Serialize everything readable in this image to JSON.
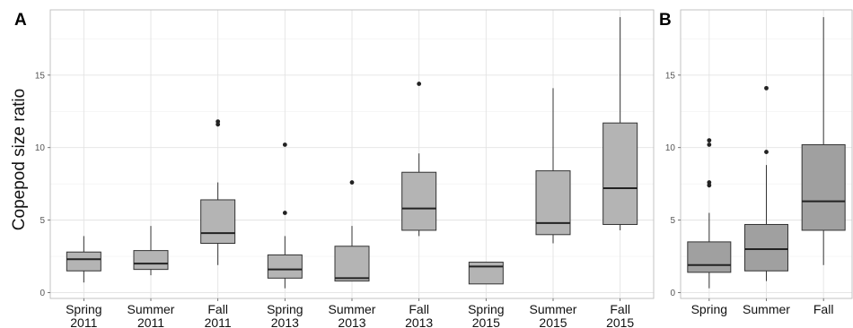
{
  "chart_data": [
    {
      "panel_label": "A",
      "type": "box",
      "ylabel": "Copepod size ratio",
      "ylim": [
        -0.4,
        19.5
      ],
      "yticks": [
        0,
        5,
        10,
        15
      ],
      "grid": true,
      "box_fill": "#b4b4b4",
      "categories": [
        {
          "line1": "Spring",
          "line2": "2011"
        },
        {
          "line1": "Summer",
          "line2": "2011"
        },
        {
          "line1": "Fall",
          "line2": "2011"
        },
        {
          "line1": "Spring",
          "line2": "2013"
        },
        {
          "line1": "Summer",
          "line2": "2013"
        },
        {
          "line1": "Fall",
          "line2": "2013"
        },
        {
          "line1": "Spring",
          "line2": "2015"
        },
        {
          "line1": "Summer",
          "line2": "2015"
        },
        {
          "line1": "Fall",
          "line2": "2015"
        }
      ],
      "boxes": [
        {
          "min": 0.7,
          "q1": 1.5,
          "median": 2.3,
          "q3": 2.8,
          "max": 3.9,
          "outliers": []
        },
        {
          "min": 1.2,
          "q1": 1.6,
          "median": 2.0,
          "q3": 2.9,
          "max": 4.6,
          "outliers": []
        },
        {
          "min": 1.9,
          "q1": 3.4,
          "median": 4.1,
          "q3": 6.4,
          "max": 7.6,
          "outliers": [
            11.6,
            11.8
          ]
        },
        {
          "min": 0.3,
          "q1": 1.0,
          "median": 1.6,
          "q3": 2.6,
          "max": 3.9,
          "outliers": [
            5.5,
            10.2
          ]
        },
        {
          "min": 0.8,
          "q1": 0.8,
          "median": 1.0,
          "q3": 3.2,
          "max": 4.6,
          "outliers": [
            7.6
          ]
        },
        {
          "min": 3.9,
          "q1": 4.3,
          "median": 5.8,
          "q3": 8.3,
          "max": 9.6,
          "outliers": [
            14.4
          ]
        },
        {
          "min": 0.6,
          "q1": 0.6,
          "median": 1.8,
          "q3": 2.1,
          "max": 2.1,
          "outliers": []
        },
        {
          "min": 3.4,
          "q1": 4.0,
          "median": 4.8,
          "q3": 8.4,
          "max": 14.1,
          "outliers": []
        },
        {
          "min": 4.3,
          "q1": 4.7,
          "median": 7.2,
          "q3": 11.7,
          "max": 19.0,
          "outliers": []
        }
      ]
    },
    {
      "panel_label": "B",
      "type": "box",
      "ylim": [
        -0.4,
        19.5
      ],
      "yticks": [
        0,
        5,
        10,
        15
      ],
      "grid": true,
      "box_fill": "#a0a0a0",
      "categories": [
        {
          "line1": "Spring",
          "line2": ""
        },
        {
          "line1": "Summer",
          "line2": ""
        },
        {
          "line1": "Fall",
          "line2": ""
        }
      ],
      "boxes": [
        {
          "min": 0.3,
          "q1": 1.4,
          "median": 1.9,
          "q3": 3.5,
          "max": 5.5,
          "outliers": [
            7.4,
            7.6,
            10.2,
            10.5
          ]
        },
        {
          "min": 0.8,
          "q1": 1.5,
          "median": 3.0,
          "q3": 4.7,
          "max": 8.8,
          "outliers": [
            9.7,
            14.1
          ]
        },
        {
          "min": 1.9,
          "q1": 4.3,
          "median": 6.3,
          "q3": 10.2,
          "max": 19.0,
          "outliers": []
        }
      ]
    }
  ]
}
